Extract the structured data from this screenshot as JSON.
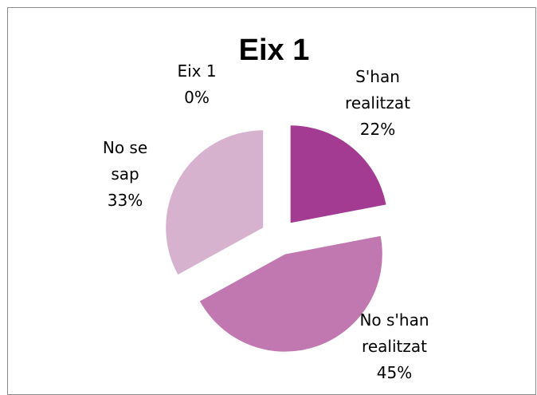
{
  "chart_data": {
    "type": "pie",
    "title": "Eix 1",
    "slices": [
      {
        "name": "Eix 1",
        "percent_label": "0%",
        "value": 0,
        "color": "#8b2f7e"
      },
      {
        "name": "S'han realitzat",
        "percent_label": "22%",
        "value": 22,
        "color": "#a43b92"
      },
      {
        "name": "No s'han realitzat",
        "percent_label": "45%",
        "value": 45,
        "color": "#c177b0"
      },
      {
        "name": "No se sap",
        "percent_label": "33%",
        "value": 33,
        "color": "#d6b2cf"
      }
    ],
    "legend": "none",
    "exploded": true
  }
}
